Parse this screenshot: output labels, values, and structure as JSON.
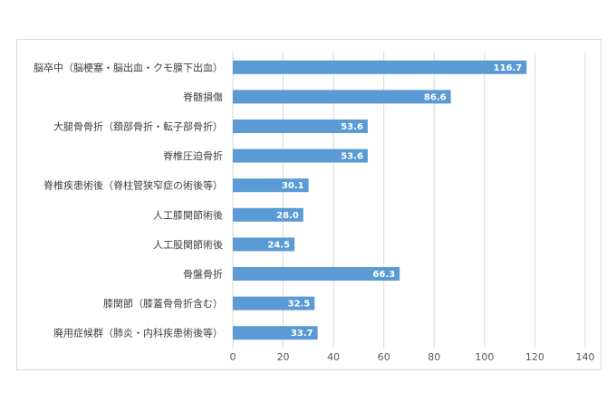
{
  "chart_data": {
    "type": "bar",
    "orientation": "horizontal",
    "categories": [
      "脳卒中（脳梗塞・脳出血・クモ膜下出血）",
      "脊髄損傷",
      "大腿骨骨折（頚部骨折・転子部骨折）",
      "脊椎圧迫骨折",
      "脊椎疾患術後（脊柱管狭窄症の術後等）",
      "人工膝関節術後",
      "人工股関節術後",
      "骨盤骨折",
      "膝関節（膝蓋骨骨折含む）",
      "廃用症候群（肺炎・内科疾患術後等）"
    ],
    "values": [
      116.7,
      86.6,
      53.6,
      53.6,
      30.1,
      28.0,
      24.5,
      66.3,
      32.5,
      33.7
    ],
    "value_labels": [
      "116.7",
      "86.6",
      "53.6",
      "53.6",
      "30.1",
      "28.0",
      "24.5",
      "66.3",
      "32.5",
      "33.7"
    ],
    "xlim": [
      0,
      140
    ],
    "xticks": [
      "0",
      "20",
      "40",
      "60",
      "80",
      "100",
      "120",
      "140"
    ],
    "grid": "vertical",
    "bar_color": "#5b9bd5"
  }
}
